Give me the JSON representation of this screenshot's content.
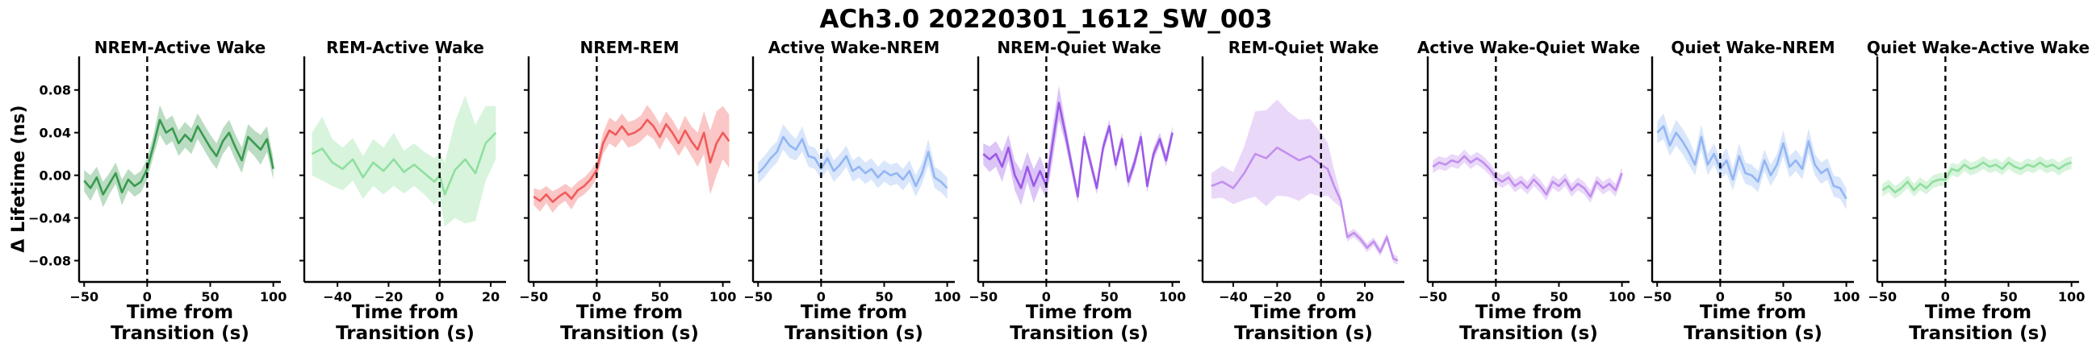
{
  "figure": {
    "title": "ACh3.0 20220301_1612_SW_003"
  },
  "shared": {
    "ylabel": "Δ Lifetime (ns)",
    "xlabel_line1": "Time from",
    "xlabel_line2": "Transition (s)",
    "ylim": [
      -0.1,
      0.11
    ],
    "yticks": [
      -0.08,
      -0.04,
      0.0,
      0.04,
      0.08
    ],
    "ytick_labels": [
      "−0.08",
      "−0.04",
      "0.00",
      "0.04",
      "0.08"
    ]
  },
  "chart_data": [
    {
      "type": "line",
      "title": "NREM-Active Wake",
      "color": "#3a9a4f",
      "xlim": [
        -54,
        106
      ],
      "xticks": [
        -50,
        0,
        50,
        100
      ],
      "xtick_labels": [
        "−50",
        "0",
        "50",
        "100"
      ],
      "transition_line_x": 0,
      "series": [
        {
          "x": [
            -50,
            -45,
            -40,
            -35,
            -30,
            -25,
            -20,
            -15,
            -10,
            -5,
            0,
            5,
            10,
            15,
            20,
            25,
            30,
            35,
            40,
            45,
            50,
            55,
            60,
            65,
            70,
            75,
            80,
            85,
            90,
            95,
            100
          ],
          "y": [
            -0.005,
            -0.012,
            -0.002,
            -0.018,
            -0.008,
            0.002,
            -0.016,
            -0.004,
            -0.01,
            -0.006,
            0.006,
            0.028,
            0.052,
            0.04,
            0.044,
            0.03,
            0.038,
            0.032,
            0.046,
            0.036,
            0.026,
            0.018,
            0.032,
            0.04,
            0.026,
            0.014,
            0.036,
            0.03,
            0.024,
            0.034,
            0.006
          ],
          "band": [
            0.01,
            0.012,
            0.01,
            0.012,
            0.01,
            0.01,
            0.012,
            0.01,
            0.01,
            0.01,
            0.01,
            0.01,
            0.014,
            0.012,
            0.012,
            0.012,
            0.012,
            0.012,
            0.012,
            0.012,
            0.012,
            0.012,
            0.012,
            0.012,
            0.012,
            0.012,
            0.012,
            0.012,
            0.014,
            0.012,
            0.01
          ]
        }
      ]
    },
    {
      "type": "line",
      "title": "REM-Active Wake",
      "color": "#90df9e",
      "xlim": [
        -53,
        26
      ],
      "xticks": [
        -40,
        -20,
        0,
        20
      ],
      "xtick_labels": [
        "−40",
        "−20",
        "0",
        "20"
      ],
      "transition_line_x": 0,
      "series": [
        {
          "x": [
            -50,
            -46,
            -42,
            -38,
            -34,
            -30,
            -26,
            -22,
            -18,
            -14,
            -10,
            -6,
            -2,
            0,
            2,
            6,
            10,
            14,
            18,
            22
          ],
          "y": [
            0.02,
            0.025,
            0.012,
            0.006,
            0.015,
            -0.002,
            0.012,
            0.004,
            0.015,
            0.003,
            0.01,
            0.002,
            -0.006,
            0.0,
            -0.018,
            0.005,
            0.015,
            0.002,
            0.03,
            0.04
          ],
          "band": [
            0.02,
            0.03,
            0.022,
            0.02,
            0.02,
            0.02,
            0.022,
            0.022,
            0.025,
            0.02,
            0.02,
            0.02,
            0.022,
            0.022,
            0.03,
            0.045,
            0.06,
            0.045,
            0.035,
            0.025
          ]
        }
      ]
    },
    {
      "type": "line",
      "title": "NREM-REM",
      "color": "#f15b5b",
      "xlim": [
        -54,
        106
      ],
      "xticks": [
        -50,
        0,
        50,
        100
      ],
      "xtick_labels": [
        "−50",
        "0",
        "50",
        "100"
      ],
      "transition_line_x": 0,
      "series": [
        {
          "x": [
            -50,
            -45,
            -40,
            -35,
            -30,
            -25,
            -20,
            -15,
            -10,
            -5,
            0,
            5,
            10,
            15,
            20,
            25,
            30,
            35,
            40,
            45,
            50,
            55,
            60,
            65,
            70,
            75,
            80,
            85,
            90,
            95,
            100,
            105
          ],
          "y": [
            -0.02,
            -0.024,
            -0.018,
            -0.025,
            -0.02,
            -0.016,
            -0.022,
            -0.014,
            -0.01,
            -0.004,
            0.005,
            0.03,
            0.042,
            0.038,
            0.046,
            0.038,
            0.04,
            0.044,
            0.052,
            0.046,
            0.036,
            0.048,
            0.04,
            0.03,
            0.042,
            0.032,
            0.024,
            0.04,
            0.012,
            0.03,
            0.04,
            0.032
          ],
          "band": [
            0.008,
            0.01,
            0.008,
            0.01,
            0.008,
            0.008,
            0.01,
            0.008,
            0.008,
            0.008,
            0.008,
            0.01,
            0.012,
            0.012,
            0.012,
            0.012,
            0.012,
            0.012,
            0.014,
            0.012,
            0.012,
            0.012,
            0.012,
            0.012,
            0.014,
            0.014,
            0.016,
            0.02,
            0.03,
            0.03,
            0.025,
            0.025
          ]
        }
      ]
    },
    {
      "type": "line",
      "title": "Active Wake-NREM",
      "color": "#93b6f3",
      "xlim": [
        -54,
        106
      ],
      "xticks": [
        -50,
        0,
        50,
        100
      ],
      "xtick_labels": [
        "−50",
        "0",
        "50",
        "100"
      ],
      "transition_line_x": 0,
      "series": [
        {
          "x": [
            -50,
            -45,
            -40,
            -35,
            -30,
            -25,
            -20,
            -15,
            -10,
            -5,
            0,
            5,
            10,
            15,
            20,
            25,
            30,
            35,
            40,
            45,
            50,
            55,
            60,
            65,
            70,
            75,
            80,
            85,
            90,
            95,
            100
          ],
          "y": [
            0.002,
            0.008,
            0.016,
            0.022,
            0.036,
            0.028,
            0.024,
            0.034,
            0.018,
            0.016,
            0.006,
            0.016,
            0.004,
            0.01,
            0.018,
            0.004,
            0.008,
            0.002,
            0.006,
            -0.002,
            0.004,
            0.0,
            0.002,
            -0.004,
            0.004,
            -0.01,
            0.002,
            0.022,
            -0.002,
            -0.006,
            -0.012
          ],
          "band": [
            0.01,
            0.01,
            0.01,
            0.01,
            0.012,
            0.012,
            0.01,
            0.012,
            0.01,
            0.01,
            0.01,
            0.01,
            0.01,
            0.01,
            0.01,
            0.01,
            0.01,
            0.01,
            0.01,
            0.01,
            0.01,
            0.01,
            0.01,
            0.01,
            0.01,
            0.01,
            0.01,
            0.012,
            0.01,
            0.01,
            0.01
          ]
        }
      ]
    },
    {
      "type": "line",
      "title": "NREM-Quiet Wake",
      "color": "#9b59e8",
      "xlim": [
        -54,
        106
      ],
      "xticks": [
        -50,
        0,
        50,
        100
      ],
      "xtick_labels": [
        "−50",
        "0",
        "50",
        "100"
      ],
      "transition_line_x": 0,
      "series": [
        {
          "x": [
            -50,
            -45,
            -40,
            -35,
            -30,
            -25,
            -20,
            -15,
            -10,
            -5,
            0,
            5,
            10,
            15,
            20,
            25,
            30,
            35,
            40,
            45,
            50,
            55,
            60,
            65,
            70,
            75,
            80,
            85,
            90,
            95,
            100
          ],
          "y": [
            0.02,
            0.015,
            0.02,
            0.008,
            0.026,
            0.0,
            -0.012,
            0.008,
            -0.01,
            0.004,
            -0.01,
            0.03,
            0.068,
            0.04,
            0.01,
            -0.02,
            0.036,
            0.012,
            -0.012,
            0.026,
            0.046,
            0.01,
            0.034,
            -0.006,
            0.012,
            0.036,
            -0.01,
            0.02,
            0.034,
            0.014,
            0.04
          ],
          "band": [
            0.01,
            0.012,
            0.012,
            0.014,
            0.012,
            0.014,
            0.016,
            0.014,
            0.016,
            0.014,
            0.012,
            0.016,
            0.016,
            0.01,
            0.008,
            0.006,
            0.006,
            0.006,
            0.006,
            0.006,
            0.006,
            0.006,
            0.006,
            0.006,
            0.006,
            0.006,
            0.006,
            0.006,
            0.006,
            0.006,
            0.006
          ]
        }
      ]
    },
    {
      "type": "line",
      "title": "REM-Quiet Wake",
      "color": "#c28fef",
      "xlim": [
        -54,
        38
      ],
      "xticks": [
        -40,
        -20,
        0,
        20
      ],
      "xtick_labels": [
        "−40",
        "−20",
        "0",
        "20"
      ],
      "transition_line_x": 0,
      "series": [
        {
          "x": [
            -50,
            -45,
            -40,
            -35,
            -30,
            -25,
            -20,
            -15,
            -10,
            -5,
            0,
            3,
            6,
            9,
            12,
            15,
            18,
            21,
            24,
            27,
            30,
            33,
            35
          ],
          "y": [
            -0.01,
            -0.006,
            -0.012,
            0.002,
            0.02,
            0.016,
            0.026,
            0.02,
            0.014,
            0.018,
            0.01,
            0.006,
            -0.01,
            -0.024,
            -0.058,
            -0.054,
            -0.06,
            -0.068,
            -0.062,
            -0.072,
            -0.058,
            -0.078,
            -0.08
          ],
          "band": [
            0.012,
            0.015,
            0.015,
            0.025,
            0.04,
            0.045,
            0.045,
            0.04,
            0.038,
            0.035,
            0.03,
            0.025,
            0.015,
            0.006,
            0.004,
            0.004,
            0.004,
            0.004,
            0.004,
            0.004,
            0.004,
            0.004,
            0.004
          ]
        }
      ]
    },
    {
      "type": "line",
      "title": "Active Wake-Quiet Wake",
      "color": "#c28fef",
      "xlim": [
        -54,
        106
      ],
      "xticks": [
        -50,
        0,
        50,
        100
      ],
      "xtick_labels": [
        "−50",
        "0",
        "50",
        "100"
      ],
      "transition_line_x": 0,
      "series": [
        {
          "x": [
            -50,
            -45,
            -40,
            -35,
            -30,
            -25,
            -20,
            -15,
            -10,
            -5,
            0,
            5,
            10,
            15,
            20,
            25,
            30,
            35,
            40,
            45,
            50,
            55,
            60,
            65,
            70,
            75,
            80,
            85,
            90,
            95,
            100
          ],
          "y": [
            0.008,
            0.012,
            0.01,
            0.014,
            0.012,
            0.018,
            0.012,
            0.016,
            0.012,
            0.006,
            -0.002,
            -0.006,
            -0.002,
            -0.01,
            -0.006,
            -0.012,
            -0.004,
            -0.01,
            -0.018,
            -0.006,
            -0.01,
            -0.004,
            -0.014,
            -0.008,
            -0.012,
            -0.02,
            -0.006,
            -0.012,
            -0.008,
            -0.014,
            0.002
          ],
          "band": [
            0.006,
            0.006,
            0.006,
            0.006,
            0.006,
            0.006,
            0.006,
            0.006,
            0.006,
            0.006,
            0.006,
            0.006,
            0.006,
            0.006,
            0.006,
            0.006,
            0.006,
            0.006,
            0.006,
            0.006,
            0.006,
            0.006,
            0.006,
            0.006,
            0.006,
            0.006,
            0.006,
            0.006,
            0.006,
            0.006,
            0.006
          ]
        }
      ]
    },
    {
      "type": "line",
      "title": "Quiet Wake-NREM",
      "color": "#93b6f3",
      "xlim": [
        -54,
        106
      ],
      "xticks": [
        -50,
        0,
        50,
        100
      ],
      "xtick_labels": [
        "−50",
        "0",
        "50",
        "100"
      ],
      "transition_line_x": 0,
      "series": [
        {
          "x": [
            -50,
            -45,
            -40,
            -35,
            -30,
            -25,
            -20,
            -15,
            -10,
            -5,
            0,
            5,
            10,
            15,
            20,
            25,
            30,
            35,
            40,
            45,
            50,
            55,
            60,
            65,
            70,
            75,
            80,
            85,
            90,
            95,
            100
          ],
          "y": [
            0.04,
            0.046,
            0.028,
            0.04,
            0.032,
            0.022,
            0.01,
            0.036,
            0.01,
            0.02,
            0.006,
            0.014,
            -0.004,
            0.018,
            0.002,
            0.0,
            -0.006,
            0.014,
            0.0,
            0.01,
            0.03,
            0.008,
            0.014,
            0.006,
            0.032,
            0.01,
            0.002,
            0.006,
            -0.01,
            -0.012,
            -0.022
          ],
          "band": [
            0.01,
            0.012,
            0.01,
            0.012,
            0.012,
            0.012,
            0.01,
            0.012,
            0.01,
            0.01,
            0.01,
            0.012,
            0.01,
            0.012,
            0.01,
            0.01,
            0.01,
            0.01,
            0.01,
            0.01,
            0.012,
            0.01,
            0.01,
            0.01,
            0.012,
            0.01,
            0.01,
            0.01,
            0.01,
            0.01,
            0.01
          ]
        }
      ]
    },
    {
      "type": "line",
      "title": "Quiet Wake-Active Wake",
      "color": "#90df9e",
      "xlim": [
        -54,
        106
      ],
      "xticks": [
        -50,
        0,
        50,
        100
      ],
      "xtick_labels": [
        "−50",
        "0",
        "50",
        "100"
      ],
      "transition_line_x": 0,
      "series": [
        {
          "x": [
            -50,
            -45,
            -40,
            -35,
            -30,
            -25,
            -20,
            -15,
            -10,
            -5,
            0,
            5,
            10,
            15,
            20,
            25,
            30,
            35,
            40,
            45,
            50,
            55,
            60,
            65,
            70,
            75,
            80,
            85,
            90,
            95,
            100
          ],
          "y": [
            -0.014,
            -0.01,
            -0.016,
            -0.012,
            -0.006,
            -0.014,
            -0.008,
            -0.012,
            -0.006,
            -0.004,
            -0.004,
            0.006,
            0.004,
            0.01,
            0.006,
            0.008,
            0.012,
            0.008,
            0.01,
            0.006,
            0.012,
            0.008,
            0.006,
            0.01,
            0.008,
            0.012,
            0.008,
            0.01,
            0.006,
            0.01,
            0.012
          ],
          "band": [
            0.006,
            0.006,
            0.006,
            0.006,
            0.006,
            0.006,
            0.006,
            0.006,
            0.006,
            0.006,
            0.006,
            0.006,
            0.006,
            0.006,
            0.006,
            0.006,
            0.006,
            0.006,
            0.006,
            0.006,
            0.006,
            0.006,
            0.006,
            0.006,
            0.006,
            0.006,
            0.006,
            0.006,
            0.006,
            0.006,
            0.006
          ]
        }
      ]
    }
  ]
}
